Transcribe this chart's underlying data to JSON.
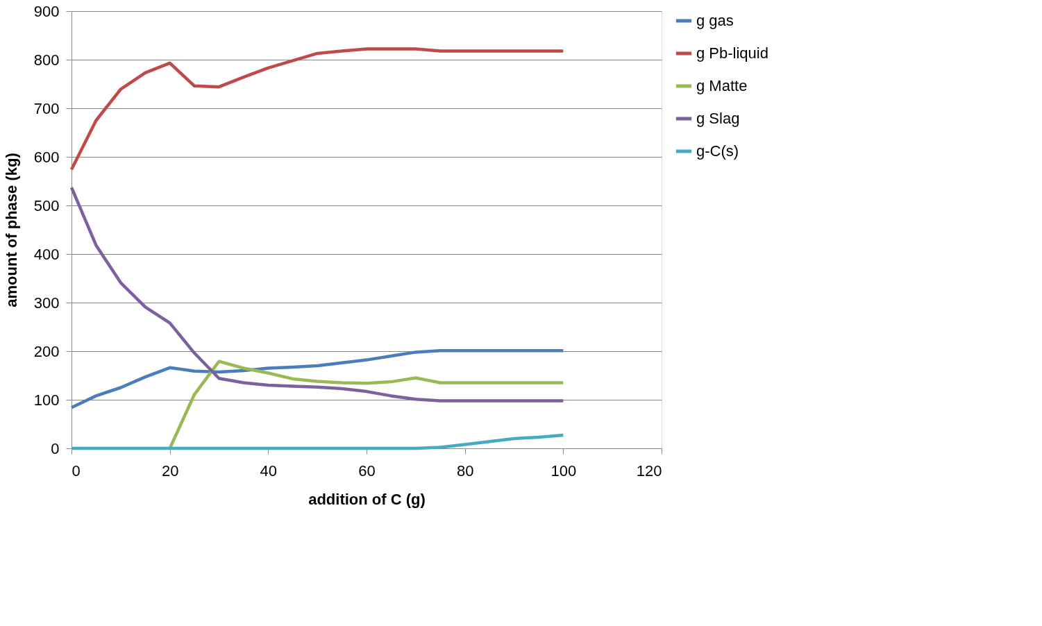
{
  "chart_data": {
    "type": "line",
    "xlabel": "addition of C (g)",
    "ylabel": "amount of phase (kg)",
    "x": [
      0,
      5,
      10,
      15,
      20,
      25,
      30,
      35,
      40,
      45,
      50,
      55,
      60,
      65,
      70,
      75,
      80,
      85,
      90,
      95,
      100
    ],
    "series": [
      {
        "name": "g gas",
        "color": "#4a7ebb",
        "values": [
          84,
          108,
          125,
          147,
          166,
          159,
          157,
          160,
          165,
          167,
          170,
          176,
          182,
          190,
          198,
          201,
          201,
          201,
          201,
          201,
          201
        ]
      },
      {
        "name": "g Pb-liquid",
        "color": "#be4b48",
        "values": [
          574,
          675,
          739,
          773,
          793,
          746,
          744,
          764,
          783,
          798,
          813,
          818,
          822,
          822,
          822,
          818,
          818,
          818,
          818,
          818,
          818
        ]
      },
      {
        "name": "g Matte",
        "color": "#98b954",
        "values": [
          null,
          null,
          null,
          null,
          0,
          111,
          179,
          165,
          155,
          143,
          138,
          135,
          134,
          137,
          145,
          135,
          135,
          135,
          135,
          135,
          135
        ]
      },
      {
        "name": "g Slag",
        "color": "#7d60a0",
        "values": [
          537,
          418,
          341,
          291,
          258,
          196,
          144,
          135,
          130,
          128,
          126,
          123,
          117,
          108,
          101,
          98,
          98,
          98,
          98,
          98,
          98
        ]
      },
      {
        "name": "g-C(s)",
        "color": "#46aac5",
        "values": [
          0,
          0,
          0,
          0,
          0,
          0,
          0,
          0,
          0,
          0,
          0,
          0,
          0,
          0,
          0,
          2,
          8,
          14,
          20,
          23,
          27
        ]
      }
    ],
    "xlim": [
      0,
      120
    ],
    "xticks": [
      0,
      20,
      40,
      60,
      80,
      100,
      120
    ],
    "ylim": [
      0,
      900
    ],
    "yticks": [
      0,
      100,
      200,
      300,
      400,
      500,
      600,
      700,
      800,
      900
    ],
    "grid": "y",
    "legend": "right",
    "marker": "none",
    "line_style": "solid"
  }
}
